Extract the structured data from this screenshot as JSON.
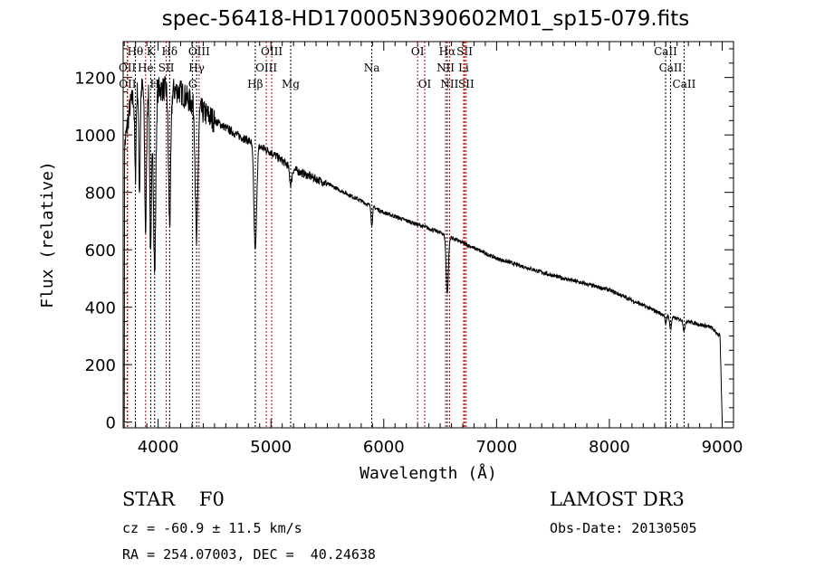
{
  "chart_data": {
    "type": "line",
    "title": "spec-56418-HD170005N390602M01_sp15-079.fits",
    "xlabel": "Wavelength (Å)",
    "ylabel": "Flux (relative)",
    "xlim": [
      3690,
      9100
    ],
    "ylim": [
      -20,
      1325
    ],
    "x_ticks": [
      4000,
      5000,
      6000,
      7000,
      8000,
      9000
    ],
    "y_ticks": [
      0,
      200,
      400,
      600,
      800,
      1000,
      1200
    ],
    "grid": false,
    "continuum": {
      "x": [
        3700,
        3750,
        3800,
        3900,
        4000,
        4100,
        4200,
        4300,
        4500,
        4700,
        5000,
        5200,
        5500,
        6000,
        6500,
        7000,
        7500,
        8000,
        8500,
        8700,
        8900,
        8980,
        9000
      ],
      "y": [
        950,
        1100,
        1150,
        1170,
        1160,
        1160,
        1150,
        1110,
        1050,
        1000,
        940,
        880,
        830,
        730,
        660,
        570,
        510,
        460,
        370,
        350,
        330,
        300,
        0
      ]
    },
    "absorption": [
      {
        "x": 3798,
        "depth": 300,
        "width": 6
      },
      {
        "x": 3835,
        "depth": 350,
        "width": 6
      },
      {
        "x": 3889,
        "depth": 500,
        "width": 8
      },
      {
        "x": 3934,
        "depth": 600,
        "width": 8
      },
      {
        "x": 3969,
        "depth": 650,
        "width": 10
      },
      {
        "x": 4102,
        "depth": 470,
        "width": 10
      },
      {
        "x": 4341,
        "depth": 480,
        "width": 11
      },
      {
        "x": 4861,
        "depth": 370,
        "width": 12
      },
      {
        "x": 5175,
        "depth": 60,
        "width": 10
      },
      {
        "x": 5894,
        "depth": 70,
        "width": 6
      },
      {
        "x": 6563,
        "depth": 200,
        "width": 10
      },
      {
        "x": 8498,
        "depth": 30,
        "width": 6
      },
      {
        "x": 8542,
        "depth": 45,
        "width": 7
      },
      {
        "x": 8662,
        "depth": 40,
        "width": 7
      }
    ],
    "lines": [
      {
        "label": "Hθ",
        "x": 3798,
        "kind": "absorption",
        "row": 1
      },
      {
        "label": "K",
        "x": 3934,
        "kind": "absorption",
        "row": 1
      },
      {
        "label": "Hδ",
        "x": 4102,
        "kind": "absorption",
        "row": 1
      },
      {
        "label": "OIII",
        "x": 4363,
        "kind": "emission",
        "row": 1
      },
      {
        "label": "OIII",
        "x": 5007,
        "kind": "emission",
        "row": 1
      },
      {
        "label": "OI",
        "x": 6300,
        "kind": "emission",
        "row": 1
      },
      {
        "label": "Hα",
        "x": 6563,
        "kind": "absorption",
        "row": 1
      },
      {
        "label": "SII",
        "x": 6717,
        "kind": "emission",
        "row": 1
      },
      {
        "label": "CaII",
        "x": 8498,
        "kind": "absorption",
        "row": 1
      },
      {
        "label": "OII",
        "x": 3727,
        "kind": "emission",
        "row": 2
      },
      {
        "label": "He",
        "x": 3889,
        "kind": "emission",
        "row": 2
      },
      {
        "label": "SII",
        "x": 4072,
        "kind": "emission",
        "row": 2
      },
      {
        "label": "Hγ",
        "x": 4341,
        "kind": "absorption",
        "row": 2
      },
      {
        "label": "OIII",
        "x": 4959,
        "kind": "emission",
        "row": 2
      },
      {
        "label": "Na",
        "x": 5894,
        "kind": "absorption",
        "row": 2
      },
      {
        "label": "NII",
        "x": 6548,
        "kind": "emission",
        "row": 2
      },
      {
        "label": "Li",
        "x": 6708,
        "kind": "emission",
        "row": 2
      },
      {
        "label": "CaII",
        "x": 8542,
        "kind": "absorption",
        "row": 2
      },
      {
        "label": "OII",
        "x": 3729,
        "kind": "emission",
        "row": 3
      },
      {
        "label": "H",
        "x": 3969,
        "kind": "absorption",
        "row": 3
      },
      {
        "label": "G",
        "x": 4305,
        "kind": "absorption",
        "row": 3
      },
      {
        "label": "Hβ",
        "x": 4861,
        "kind": "absorption",
        "row": 3
      },
      {
        "label": "Mg",
        "x": 5175,
        "kind": "absorption",
        "row": 3
      },
      {
        "label": "OI",
        "x": 6363,
        "kind": "emission",
        "row": 3
      },
      {
        "label": "NII",
        "x": 6583,
        "kind": "emission",
        "row": 3
      },
      {
        "label": "SII",
        "x": 6731,
        "kind": "emission",
        "row": 3
      },
      {
        "label": "CaII",
        "x": 8662,
        "kind": "absorption",
        "row": 3
      }
    ],
    "colors": {
      "emission": "#c00000",
      "absorption": "#000000",
      "spectrum": "#000000"
    }
  },
  "info": {
    "object": "STAR    F0",
    "survey": "LAMOST DR3",
    "cz": "cz = -60.9 ± 11.5 km/s",
    "obs_date": "Obs-Date: 20130505",
    "coords": "RA = 254.07003, DEC =  40.24638"
  }
}
